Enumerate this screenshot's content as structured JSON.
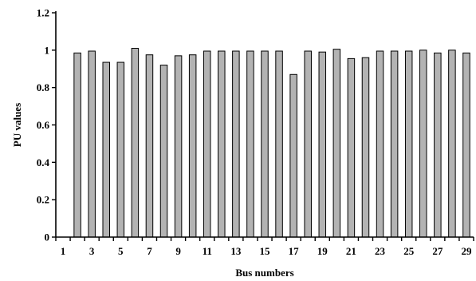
{
  "chart_data": {
    "type": "bar",
    "title": "",
    "xlabel": "Bus numbers",
    "ylabel": "PU values",
    "ylim": [
      0,
      1.2
    ],
    "yticks": [
      "0",
      "0.2",
      "0.4",
      "0.6",
      "0.8",
      "1",
      "1.2"
    ],
    "grid": false,
    "bar_color": "#b3b3b3",
    "bar_edge_color": "#000000",
    "x_tick_labels": [
      "1",
      "3",
      "5",
      "7",
      "9",
      "11",
      "13",
      "15",
      "17",
      "19",
      "21",
      "23",
      "25",
      "27",
      "29"
    ],
    "categories": [
      "1",
      "2",
      "3",
      "4",
      "5",
      "6",
      "7",
      "8",
      "9",
      "10",
      "11",
      "12",
      "13",
      "14",
      "15",
      "16",
      "17",
      "18",
      "19",
      "20",
      "21",
      "22",
      "23",
      "24",
      "25",
      "26",
      "27",
      "28",
      "29"
    ],
    "values": [
      0,
      0.985,
      0.995,
      0.935,
      0.935,
      1.01,
      0.975,
      0.92,
      0.97,
      0.975,
      0.995,
      0.995,
      0.995,
      0.995,
      0.995,
      0.995,
      0.87,
      0.995,
      0.99,
      1.005,
      0.955,
      0.96,
      0.995,
      0.995,
      0.995,
      1.0,
      0.985,
      1.0,
      0.985
    ]
  }
}
